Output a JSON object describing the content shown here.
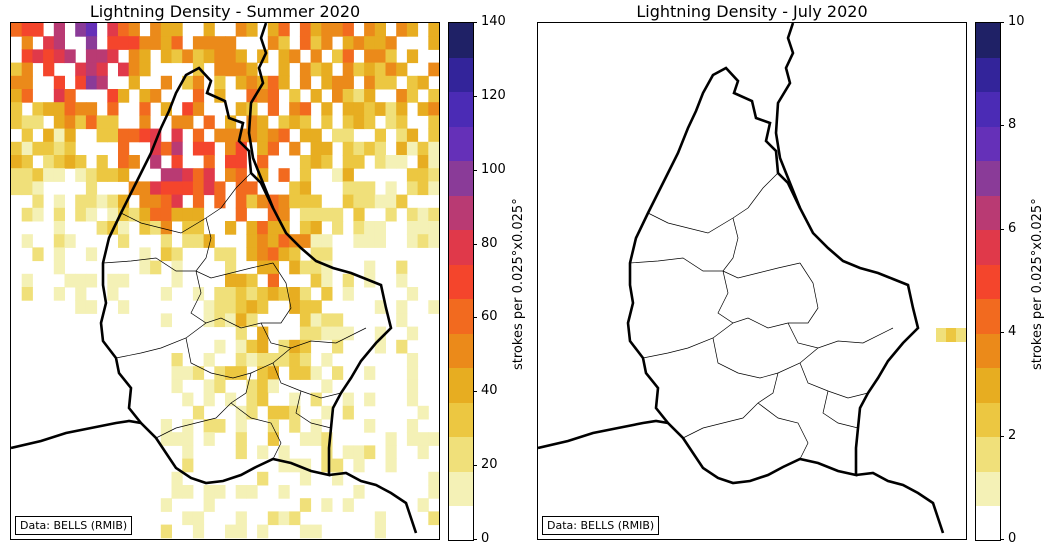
{
  "panels": [
    {
      "title": "Lightning Density - Summer 2020",
      "credit": "Data: BELLS (RMIB)",
      "colorbar": {
        "label": "strokes per 0.025°x0.025°",
        "ticks": [
          "0",
          "20",
          "40",
          "60",
          "80",
          "100",
          "120",
          "140"
        ],
        "tick_values": [
          0,
          20,
          40,
          60,
          80,
          100,
          120,
          140
        ],
        "max": 140,
        "bin_width": 10
      }
    },
    {
      "title": "Lightning Density - July 2020",
      "credit": "Data: BELLS (RMIB)",
      "colorbar": {
        "label": "strokes per 0.025°x0.025°",
        "ticks": [
          "0",
          "2",
          "4",
          "6",
          "8",
          "10"
        ],
        "tick_values": [
          0,
          2,
          4,
          6,
          8,
          10
        ],
        "max": 10,
        "bin_width": 0.5
      }
    }
  ],
  "colormap": {
    "name": "CMRmap-like",
    "colors": [
      "#ffffff",
      "#f4f1b6",
      "#f0e07a",
      "#ecc741",
      "#e7ad21",
      "#eb8a1a",
      "#f26a1f",
      "#f4452c",
      "#e0394a",
      "#b93a73",
      "#8a3b98",
      "#6530b8",
      "#4b2bb5",
      "#33249a",
      "#1f2166"
    ]
  }
}
